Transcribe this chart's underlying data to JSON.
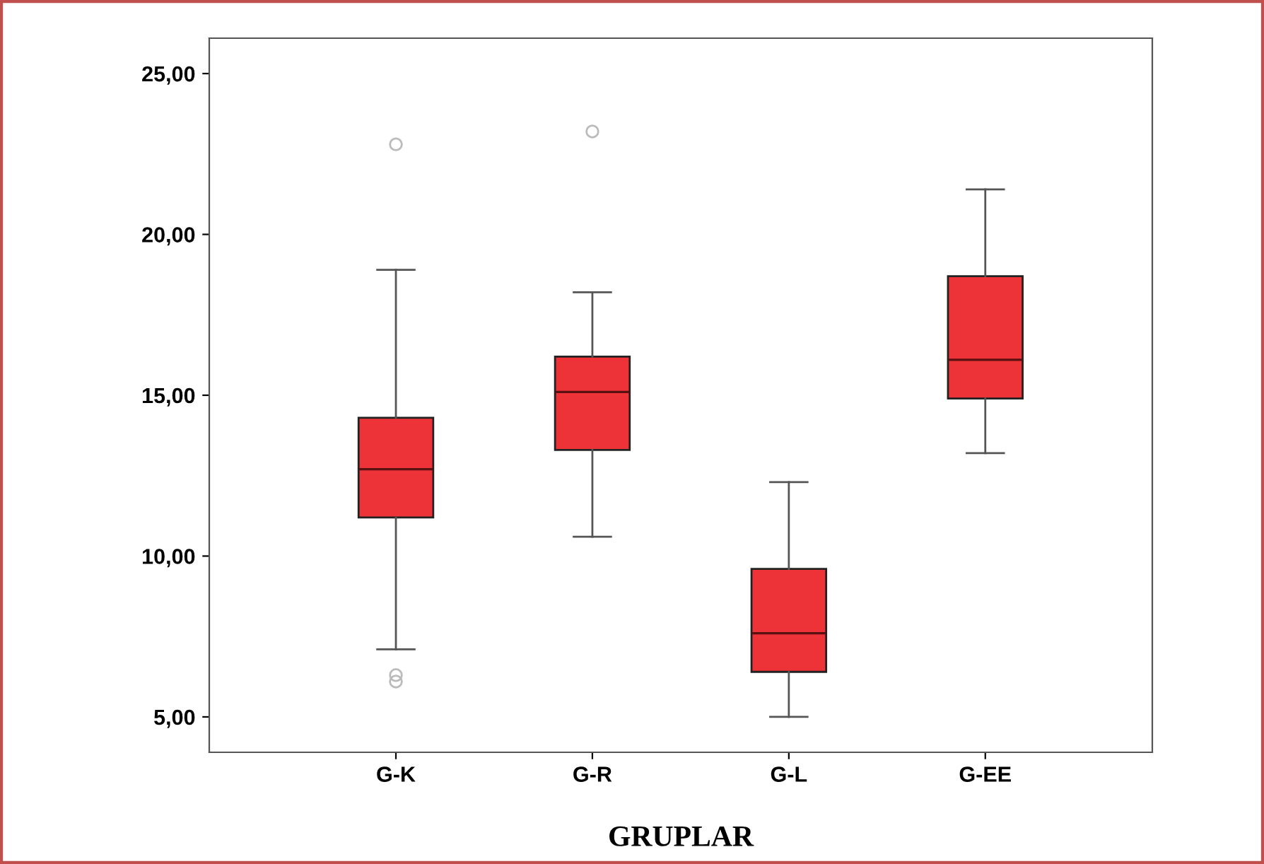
{
  "chart_data": {
    "type": "box",
    "xlabel": "GRUPLAR",
    "categories": [
      "G-K",
      "G-R",
      "G-L",
      "G-EE"
    ],
    "color": "#ee3338",
    "boxes": [
      {
        "low": 7.1,
        "q1": 11.2,
        "median": 12.7,
        "q3": 14.3,
        "high": 18.9,
        "outliers": [
          22.8,
          6.3,
          6.1
        ]
      },
      {
        "low": 10.6,
        "q1": 13.3,
        "median": 15.1,
        "q3": 16.2,
        "high": 18.2,
        "outliers": [
          23.2
        ]
      },
      {
        "low": 5.0,
        "q1": 6.4,
        "median": 7.6,
        "q3": 9.6,
        "high": 12.3
      },
      {
        "low": 13.2,
        "q1": 14.9,
        "median": 16.1,
        "q3": 18.7,
        "high": 21.4
      }
    ],
    "ylim": [
      3.9,
      26.1
    ],
    "yticks": [
      {
        "value": 5,
        "label": "5,00"
      },
      {
        "value": 10,
        "label": "10,00"
      },
      {
        "value": 15,
        "label": "15,00"
      },
      {
        "value": 20,
        "label": "20,00"
      },
      {
        "value": 25,
        "label": "25,00"
      }
    ],
    "grid": false
  }
}
